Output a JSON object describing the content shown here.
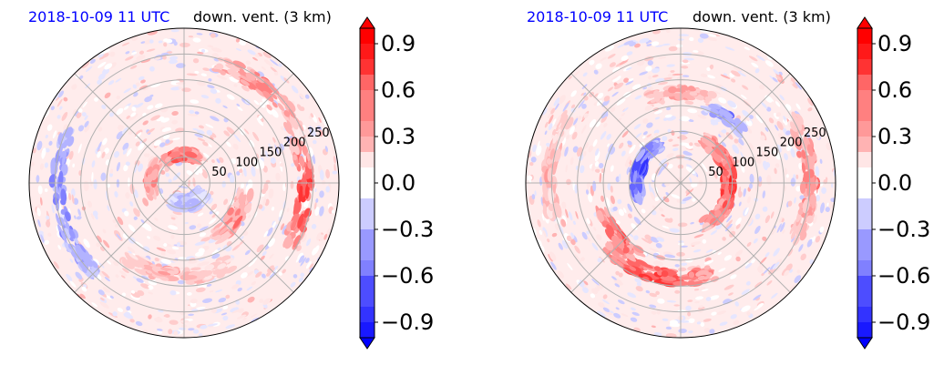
{
  "chart_data": [
    {
      "type": "heatmap",
      "projection": "polar",
      "title_date": "2018-10-09 11 UTC",
      "title_var": "down. vent. (3 km)",
      "radial_ticks": [
        "50",
        "100",
        "150",
        "200",
        "250"
      ],
      "radial_tick_values": [
        50,
        100,
        150,
        200,
        250
      ],
      "rlim": [
        0,
        300
      ],
      "grid": true,
      "colorbar": {
        "ticks": [
          "0.9",
          "0.6",
          "0.3",
          "0.0",
          "−0.3",
          "−0.6",
          "−0.9"
        ],
        "tick_values": [
          0.9,
          0.6,
          0.3,
          0.0,
          -0.3,
          -0.6,
          -0.9
        ],
        "range": [
          -1.0,
          1.0
        ],
        "extend": "both",
        "colors": {
          "low": "#0000ff",
          "mid": "#ffffff",
          "high": "#ff0000"
        }
      },
      "features": [
        {
          "kind": "band",
          "sign": 1,
          "value": 0.9,
          "r": 55,
          "w": 20,
          "t0": 60,
          "t1": 130
        },
        {
          "kind": "band",
          "sign": 1,
          "value": 0.6,
          "r": 65,
          "w": 18,
          "t0": 140,
          "t1": 200
        },
        {
          "kind": "band",
          "sign": 1,
          "value": 0.9,
          "r": 235,
          "w": 30,
          "t0": -30,
          "t1": 20
        },
        {
          "kind": "band",
          "sign": 1,
          "value": 0.6,
          "r": 240,
          "w": 30,
          "t0": 25,
          "t1": 75
        },
        {
          "kind": "band",
          "sign": -1,
          "value": -0.6,
          "r": 245,
          "w": 25,
          "t0": 155,
          "t1": 225
        },
        {
          "kind": "band",
          "sign": 1,
          "value": 0.4,
          "r": 180,
          "w": 25,
          "t0": 230,
          "t1": 300
        },
        {
          "kind": "band",
          "sign": 1,
          "value": 0.6,
          "r": 120,
          "w": 30,
          "t0": 300,
          "t1": 350
        },
        {
          "kind": "band",
          "sign": -1,
          "value": -0.4,
          "r": 40,
          "w": 30,
          "t0": 240,
          "t1": 330
        }
      ]
    },
    {
      "type": "heatmap",
      "projection": "polar",
      "title_date": "2018-10-09 11 UTC",
      "title_var": "down. vent. (3 km)",
      "radial_ticks": [
        "50",
        "100",
        "150",
        "200",
        "250"
      ],
      "radial_tick_values": [
        50,
        100,
        150,
        200,
        250
      ],
      "rlim": [
        0,
        300
      ],
      "grid": true,
      "colorbar": {
        "ticks": [
          "0.9",
          "0.6",
          "0.3",
          "0.0",
          "−0.3",
          "−0.6",
          "−0.9"
        ],
        "tick_values": [
          0.9,
          0.6,
          0.3,
          0.0,
          -0.3,
          -0.6,
          -0.9
        ],
        "range": [
          -1.0,
          1.0
        ],
        "extend": "both",
        "colors": {
          "low": "#0000ff",
          "mid": "#ffffff",
          "high": "#ff0000"
        }
      },
      "features": [
        {
          "kind": "band",
          "sign": 1,
          "value": 0.9,
          "r": 95,
          "w": 25,
          "t0": -60,
          "t1": 60
        },
        {
          "kind": "band",
          "sign": -1,
          "value": -0.9,
          "r": 85,
          "w": 22,
          "t0": 120,
          "t1": 200
        },
        {
          "kind": "band",
          "sign": 1,
          "value": 0.9,
          "r": 185,
          "w": 28,
          "t0": 220,
          "t1": 290
        },
        {
          "kind": "band",
          "sign": 1,
          "value": 0.8,
          "r": 160,
          "w": 20,
          "t0": 200,
          "t1": 240
        },
        {
          "kind": "band",
          "sign": 1,
          "value": 0.6,
          "r": 250,
          "w": 28,
          "t0": -25,
          "t1": 30
        },
        {
          "kind": "band",
          "sign": 1,
          "value": 0.5,
          "r": 175,
          "w": 20,
          "t0": 70,
          "t1": 110
        },
        {
          "kind": "band",
          "sign": -1,
          "value": -0.6,
          "r": 155,
          "w": 18,
          "t0": 40,
          "t1": 70
        },
        {
          "kind": "band",
          "sign": 1,
          "value": 0.4,
          "r": 255,
          "w": 25,
          "t0": 150,
          "t1": 200
        }
      ]
    }
  ]
}
